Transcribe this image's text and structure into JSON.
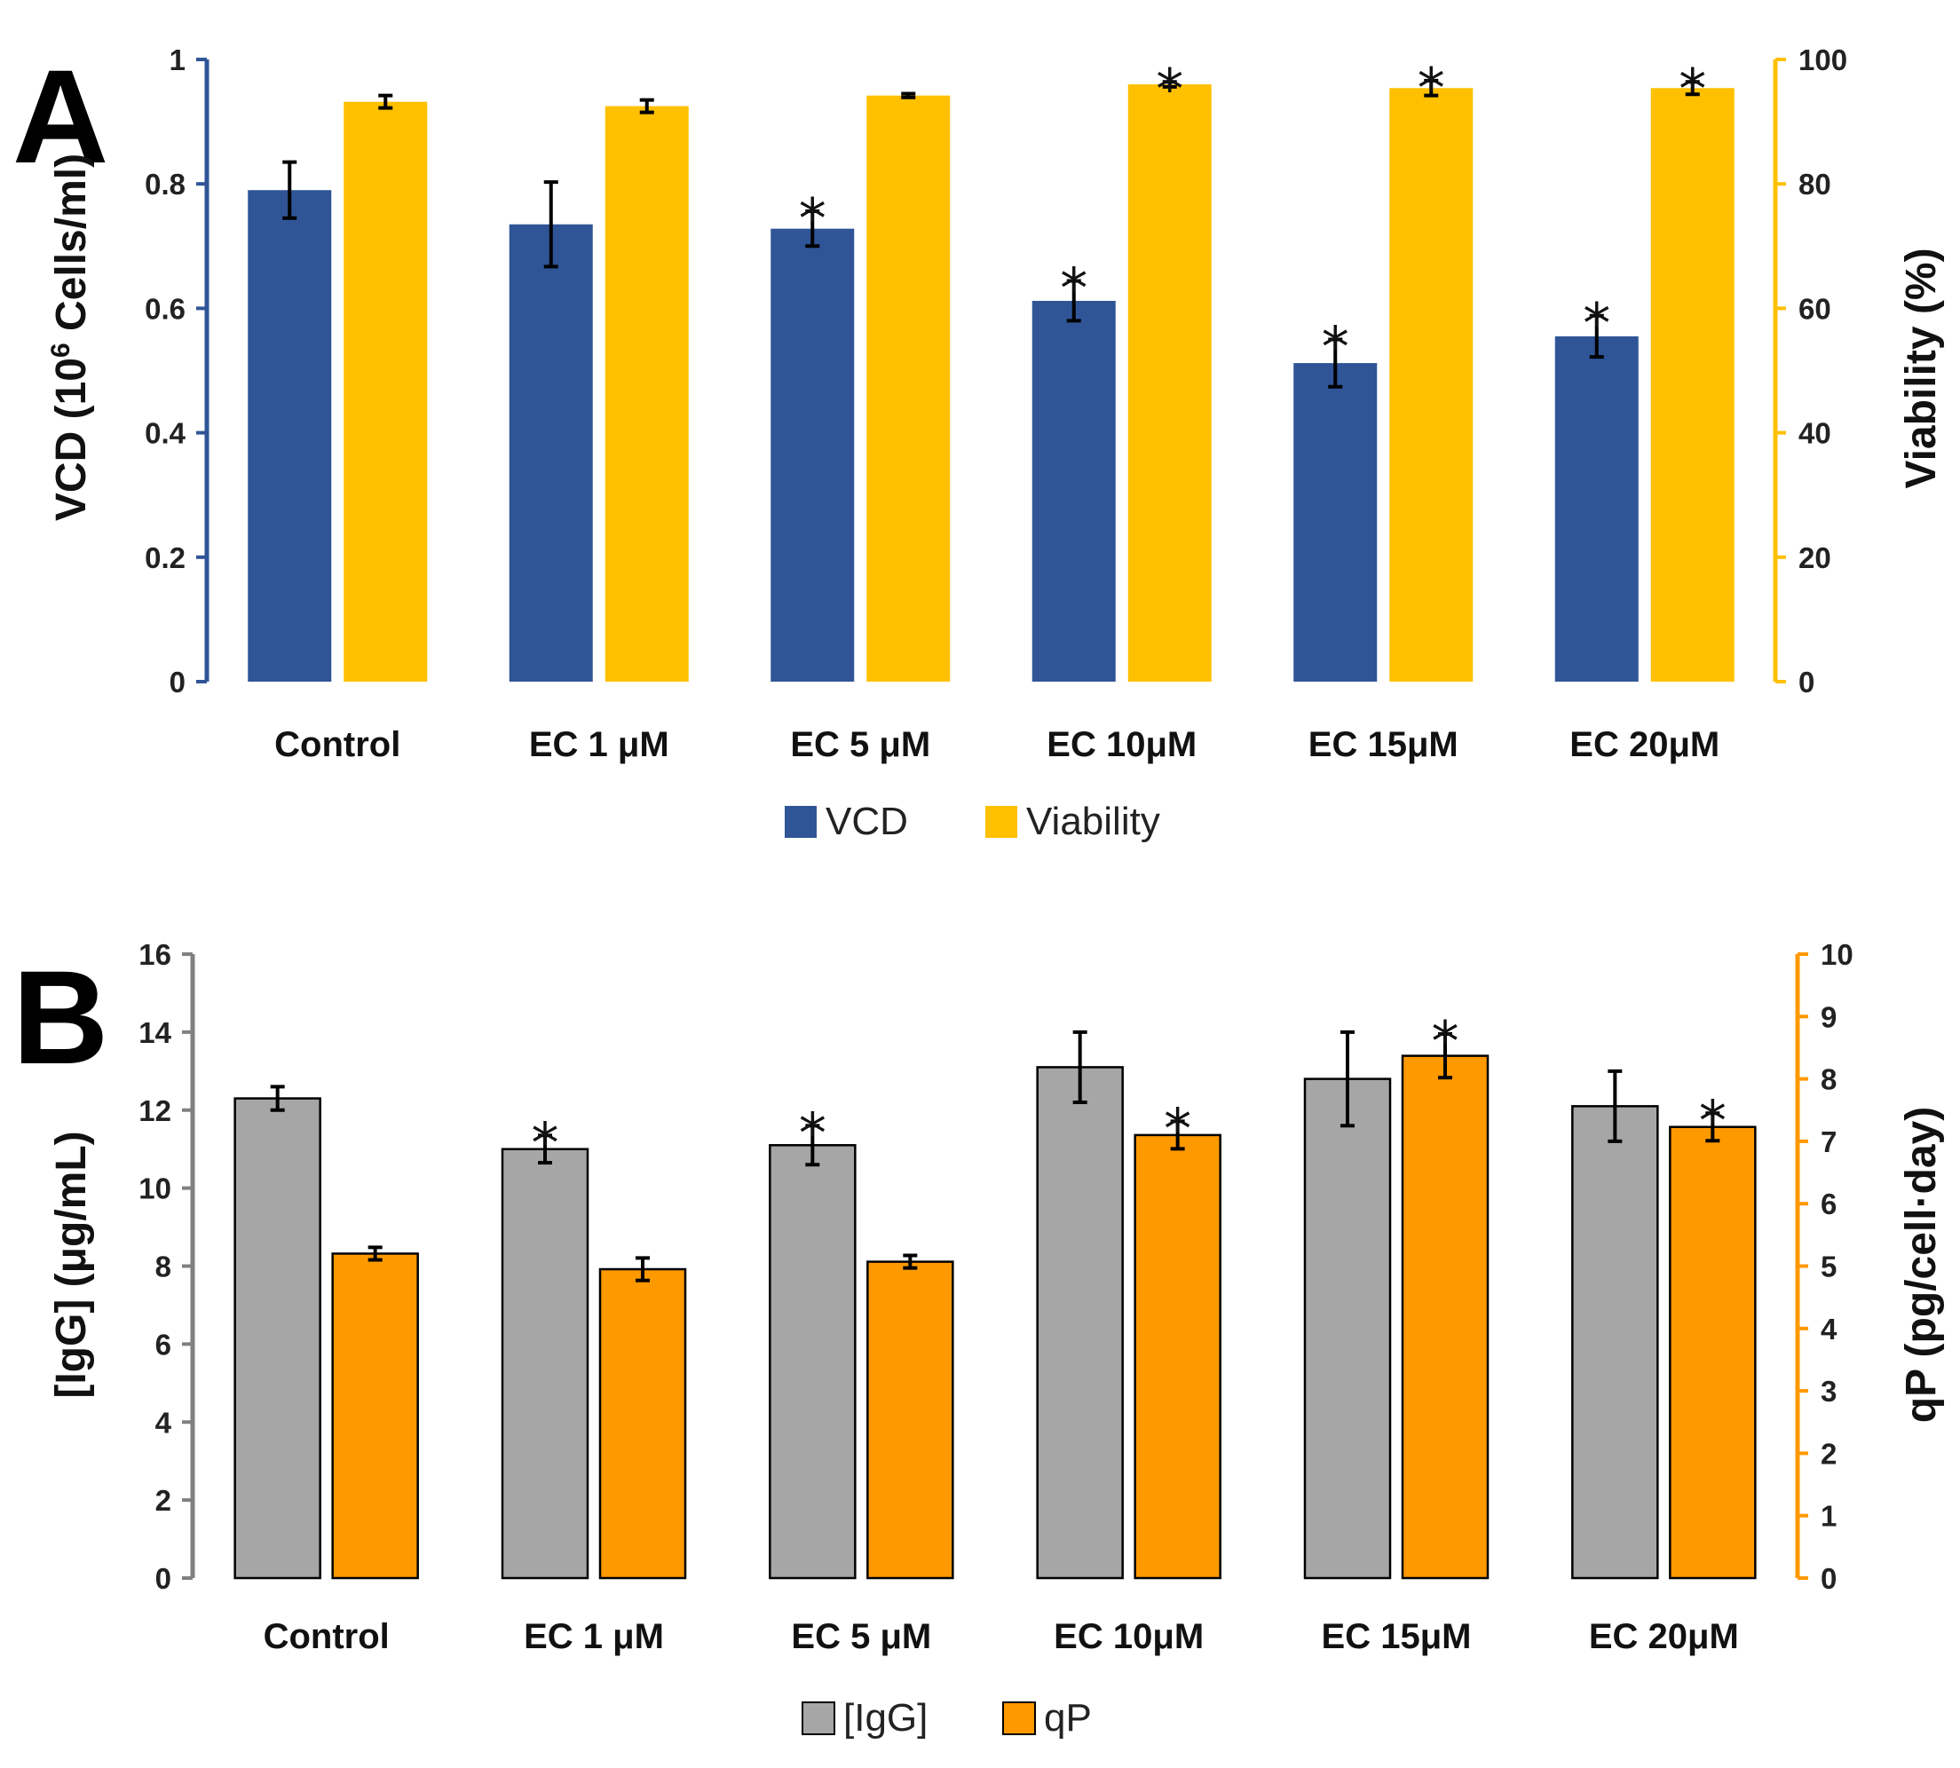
{
  "colors": {
    "vcd": "#2F5597",
    "viability": "#FFC000",
    "igg": "#A6A6A6",
    "qp": "#FF9900",
    "axis_left_a": "#2F5597",
    "axis_right_a": "#FFC000",
    "axis_left_b": "#808080",
    "axis_right_b": "#FF9900",
    "error": "#000000",
    "bar_outline": "#000000"
  },
  "chart_data": [
    {
      "panel": "A",
      "type": "bar",
      "categories": [
        "Control",
        "EC 1 μM",
        "EC 5 μM",
        "EC 10μM",
        "EC 15μM",
        "EC 20μM"
      ],
      "series": [
        {
          "name": "VCD",
          "axis": "left",
          "values": [
            0.79,
            0.735,
            0.728,
            0.612,
            0.512,
            0.555
          ],
          "errors": [
            0.045,
            0.068,
            0.028,
            0.032,
            0.038,
            0.033
          ],
          "significant": [
            false,
            false,
            true,
            true,
            true,
            true
          ]
        },
        {
          "name": "Viability",
          "axis": "right",
          "values": [
            93.2,
            92.5,
            94.2,
            96.0,
            95.4,
            95.4
          ],
          "errors": [
            1.0,
            1.0,
            0.3,
            0.4,
            1.2,
            1.0
          ],
          "significant": [
            false,
            false,
            false,
            true,
            true,
            true
          ]
        }
      ],
      "ylabel_parts": [
        "VCD (10",
        "6",
        " Cells/ml)"
      ],
      "ylabel_right": "Viability (%)",
      "ylim": [
        0,
        1
      ],
      "yticks": [
        "0",
        "0.2",
        "0.4",
        "0.6",
        "0.8",
        "1"
      ],
      "ylim_right": [
        0,
        100
      ],
      "yticks_right": [
        "0",
        "20",
        "40",
        "60",
        "80",
        "100"
      ],
      "legend": [
        "VCD",
        "Viability"
      ],
      "legend_position": "bottom-center"
    },
    {
      "panel": "B",
      "type": "bar",
      "categories": [
        "Control",
        "EC 1 μM",
        "EC 5 μM",
        "EC 10μM",
        "EC 15μM",
        "EC 20μM"
      ],
      "series": [
        {
          "name": "[IgG]",
          "axis": "left",
          "values": [
            12.3,
            11.0,
            11.1,
            13.1,
            12.8,
            12.1
          ],
          "errors": [
            0.3,
            0.35,
            0.5,
            0.9,
            1.2,
            0.9
          ],
          "significant": [
            false,
            true,
            true,
            false,
            false,
            false
          ]
        },
        {
          "name": "qP",
          "axis": "right",
          "values": [
            5.2,
            4.95,
            5.07,
            7.1,
            8.37,
            7.23
          ],
          "errors": [
            0.1,
            0.18,
            0.1,
            0.22,
            0.35,
            0.22
          ],
          "significant": [
            false,
            false,
            false,
            true,
            true,
            true
          ]
        }
      ],
      "ylabel": "[IgG] (μg/mL)",
      "ylabel_right": "qP (pg/cell·day)",
      "ylim": [
        0,
        16
      ],
      "yticks": [
        "0",
        "2",
        "4",
        "6",
        "8",
        "10",
        "12",
        "14",
        "16"
      ],
      "ylim_right": [
        0,
        10
      ],
      "yticks_right": [
        "0",
        "1",
        "2",
        "3",
        "4",
        "5",
        "6",
        "7",
        "8",
        "9",
        "10"
      ],
      "legend": [
        "[IgG]",
        "qP"
      ],
      "legend_position": "bottom-center"
    }
  ],
  "panel_labels": [
    "A",
    "B"
  ],
  "significance_marker": "*"
}
